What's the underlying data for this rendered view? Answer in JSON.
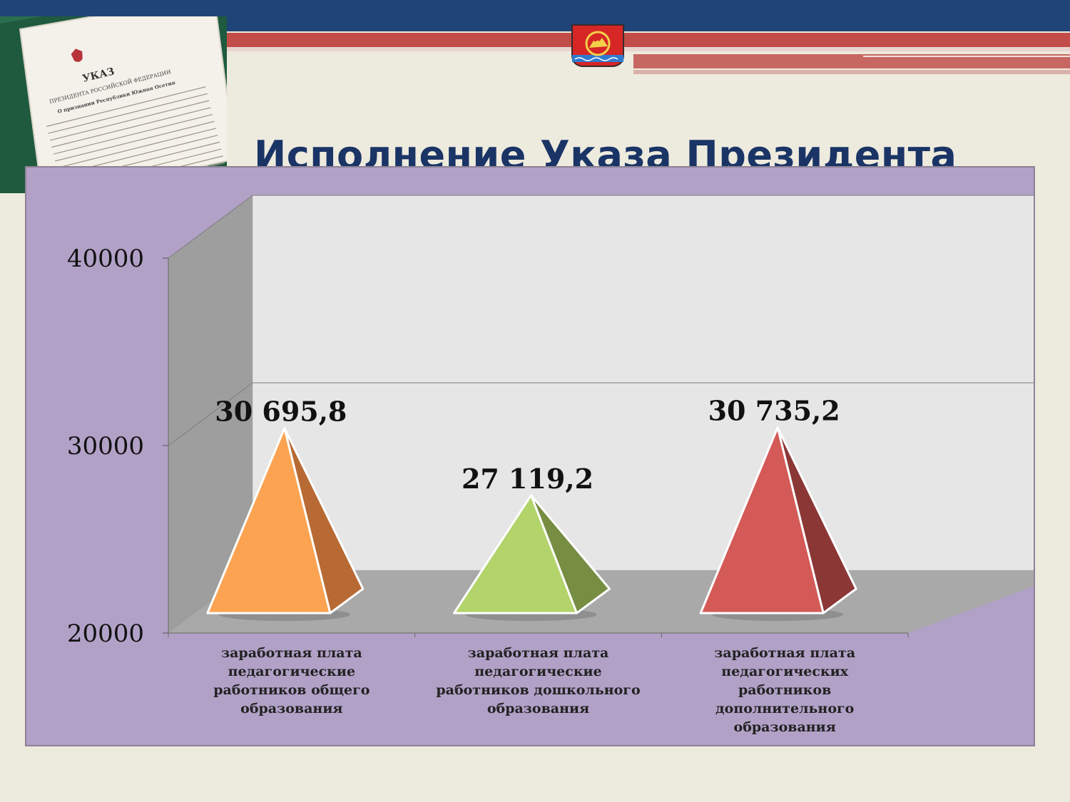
{
  "slide": {
    "title": "Исполнение Указа Президента"
  },
  "photo": {
    "doc_lines": [
      "УКАЗ",
      "ПРЕЗИДЕНТА РОССИЙСКОЙ ФЕДЕРАЦИИ",
      "О признании Республики Южная Осетия"
    ]
  },
  "icons": {
    "emblem": "city-coat-of-arms-icon"
  },
  "colors": {
    "header_blue": "#1f4477",
    "header_red": "#c24c47",
    "panel": "#b2a1c7",
    "title": "#1a3466"
  },
  "chart_data": {
    "type": "bar",
    "bar_shape": "pyramid-3d",
    "title": "",
    "xlabel": "",
    "ylabel": "",
    "ylim": [
      20000,
      40000
    ],
    "yticks": [
      "20000",
      "30000",
      "40000"
    ],
    "grid": true,
    "categories": [
      [
        "заработная плата",
        "педагогические",
        "работников общего",
        "образования"
      ],
      [
        "заработная плата",
        "педагогические",
        "работников дошкольного",
        "образования"
      ],
      [
        "заработная плата",
        "педагогических",
        "работников",
        "дополнительного",
        "образования"
      ]
    ],
    "values": [
      30695.8,
      27119.2,
      30735.2
    ],
    "data_labels": [
      "30 695,8",
      "27 119,2",
      "30 735,2"
    ],
    "colors": [
      {
        "front": "#fca351",
        "side": "#b76a33"
      },
      {
        "front": "#b3d36b",
        "side": "#768d42"
      },
      {
        "front": "#d35a57",
        "side": "#8b3736"
      }
    ]
  }
}
